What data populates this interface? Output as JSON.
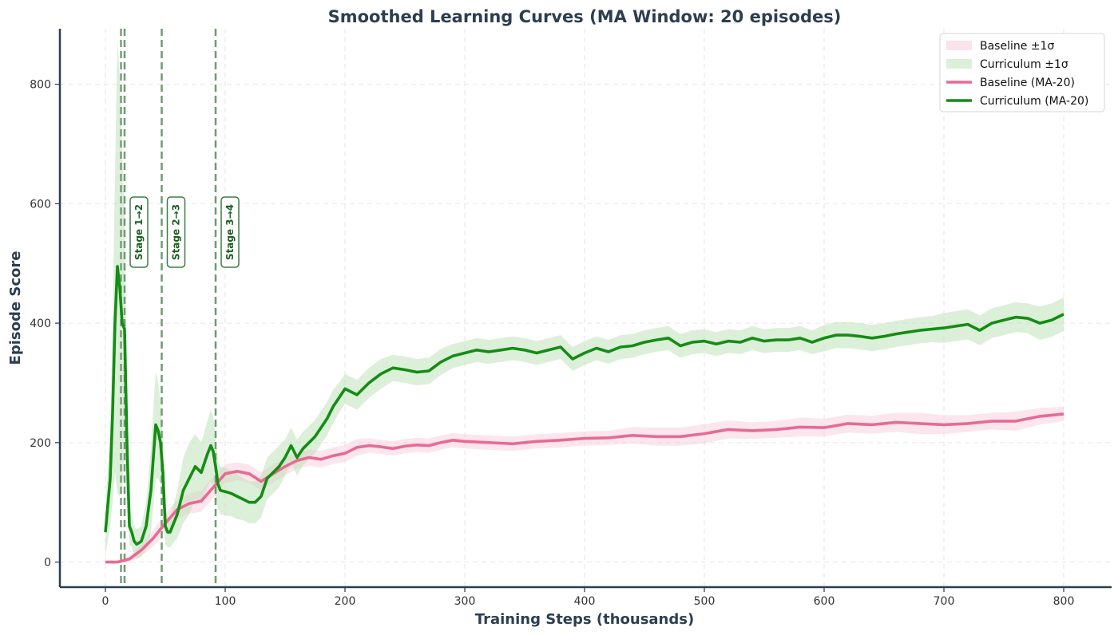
{
  "chart_data": {
    "type": "line",
    "title": "Smoothed Learning Curves (MA Window: 20 episodes)",
    "xlabel": "Training Steps (thousands)",
    "ylabel": "Episode Score",
    "xlim": [
      -38,
      840
    ],
    "ylim": [
      -42,
      893
    ],
    "xticks": [
      0,
      100,
      200,
      300,
      400,
      500,
      600,
      700,
      800
    ],
    "yticks": [
      0,
      200,
      400,
      600,
      800
    ],
    "grid": true,
    "legend_position": "top-right",
    "legend": [
      {
        "label": "Baseline ±1σ",
        "kind": "band",
        "color": "#f8c8d8"
      },
      {
        "label": "Curriculum ±1σ",
        "kind": "band",
        "color": "#b9e0b4"
      },
      {
        "label": "Baseline (MA-20)",
        "kind": "line",
        "color": "#e86a92"
      },
      {
        "label": "Curriculum (MA-20)",
        "kind": "line",
        "color": "#138d13"
      }
    ],
    "stage_lines": [
      {
        "x": 16,
        "label": "Stage 1→2"
      },
      {
        "x": 47,
        "label": "Stage 2→3"
      },
      {
        "x": 92,
        "label": "Stage 3→4"
      }
    ],
    "extra_vlines": [
      {
        "x": 13,
        "color": "#7a9e7e"
      }
    ],
    "series": [
      {
        "name": "Baseline (MA-20)",
        "color": "#e86a92",
        "band_color": "#f8c8d8",
        "x": [
          0,
          10,
          20,
          30,
          40,
          50,
          60,
          70,
          80,
          90,
          100,
          110,
          120,
          130,
          140,
          150,
          160,
          170,
          180,
          190,
          200,
          210,
          220,
          230,
          240,
          250,
          260,
          270,
          280,
          290,
          300,
          320,
          340,
          360,
          380,
          400,
          420,
          440,
          460,
          480,
          500,
          520,
          540,
          560,
          580,
          600,
          620,
          640,
          660,
          680,
          700,
          720,
          740,
          760,
          780,
          800
        ],
        "y": [
          0,
          0,
          5,
          20,
          40,
          65,
          88,
          98,
          102,
          125,
          148,
          152,
          148,
          135,
          148,
          160,
          170,
          175,
          172,
          178,
          182,
          192,
          195,
          193,
          190,
          194,
          196,
          195,
          200,
          204,
          202,
          200,
          198,
          202,
          204,
          207,
          208,
          212,
          210,
          210,
          215,
          222,
          220,
          222,
          226,
          225,
          232,
          230,
          234,
          232,
          230,
          232,
          236,
          236,
          244,
          248
        ],
        "err": [
          0,
          2,
          5,
          10,
          14,
          16,
          16,
          17,
          18,
          18,
          16,
          15,
          15,
          15,
          15,
          15,
          14,
          14,
          14,
          14,
          14,
          14,
          12,
          12,
          12,
          12,
          12,
          12,
          12,
          12,
          12,
          12,
          12,
          12,
          12,
          12,
          12,
          14,
          15,
          15,
          16,
          15,
          14,
          14,
          16,
          15,
          15,
          15,
          16,
          18,
          16,
          14,
          14,
          16,
          14,
          12
        ]
      },
      {
        "name": "Curriculum (MA-20)",
        "color": "#138d13",
        "band_color": "#b9e0b4",
        "x": [
          0,
          2,
          4,
          6,
          8,
          10,
          12,
          14,
          16,
          18,
          20,
          22,
          24,
          26,
          28,
          30,
          34,
          38,
          42,
          44,
          46,
          48,
          50,
          52,
          54,
          56,
          60,
          65,
          70,
          75,
          80,
          85,
          88,
          90,
          92,
          94,
          96,
          100,
          105,
          110,
          115,
          120,
          125,
          130,
          135,
          140,
          145,
          150,
          155,
          160,
          165,
          170,
          175,
          180,
          185,
          190,
          195,
          200,
          210,
          220,
          230,
          240,
          250,
          260,
          270,
          280,
          290,
          300,
          310,
          320,
          330,
          340,
          350,
          360,
          370,
          380,
          390,
          400,
          410,
          420,
          430,
          440,
          450,
          460,
          470,
          480,
          490,
          500,
          510,
          520,
          530,
          540,
          550,
          560,
          570,
          580,
          590,
          600,
          610,
          620,
          630,
          640,
          650,
          660,
          670,
          680,
          690,
          700,
          710,
          720,
          730,
          740,
          750,
          760,
          770,
          780,
          790,
          800
        ],
        "y": [
          50,
          95,
          140,
          250,
          400,
          495,
          460,
          400,
          390,
          200,
          60,
          50,
          35,
          30,
          32,
          35,
          60,
          120,
          230,
          220,
          200,
          150,
          60,
          50,
          50,
          60,
          80,
          120,
          140,
          160,
          150,
          180,
          195,
          185,
          160,
          130,
          120,
          118,
          115,
          110,
          105,
          100,
          100,
          110,
          140,
          150,
          160,
          175,
          195,
          175,
          190,
          200,
          210,
          225,
          240,
          260,
          275,
          290,
          280,
          300,
          315,
          325,
          322,
          318,
          320,
          335,
          345,
          350,
          355,
          352,
          355,
          358,
          355,
          350,
          355,
          360,
          340,
          350,
          358,
          352,
          360,
          362,
          368,
          372,
          375,
          362,
          368,
          370,
          365,
          370,
          368,
          375,
          370,
          372,
          372,
          375,
          368,
          375,
          380,
          380,
          378,
          375,
          378,
          382,
          385,
          388,
          390,
          392,
          395,
          398,
          388,
          400,
          405,
          410,
          408,
          400,
          405,
          415
        ],
        "err": [
          40,
          60,
          80,
          150,
          250,
          380,
          350,
          280,
          200,
          90,
          30,
          25,
          25,
          25,
          25,
          25,
          40,
          70,
          90,
          80,
          70,
          50,
          30,
          25,
          25,
          30,
          40,
          55,
          60,
          55,
          50,
          55,
          60,
          60,
          50,
          40,
          40,
          40,
          38,
          38,
          35,
          35,
          35,
          35,
          35,
          35,
          35,
          30,
          30,
          30,
          28,
          28,
          28,
          28,
          28,
          28,
          25,
          25,
          25,
          25,
          25,
          22,
          22,
          22,
          22,
          22,
          20,
          20,
          20,
          20,
          20,
          20,
          20,
          20,
          20,
          20,
          20,
          20,
          20,
          20,
          20,
          20,
          20,
          20,
          20,
          20,
          20,
          20,
          20,
          20,
          20,
          20,
          20,
          20,
          20,
          20,
          20,
          22,
          22,
          22,
          22,
          22,
          22,
          22,
          22,
          22,
          22,
          25,
          25,
          25,
          25,
          25,
          25,
          25,
          25,
          28,
          28,
          28
        ]
      }
    ]
  }
}
